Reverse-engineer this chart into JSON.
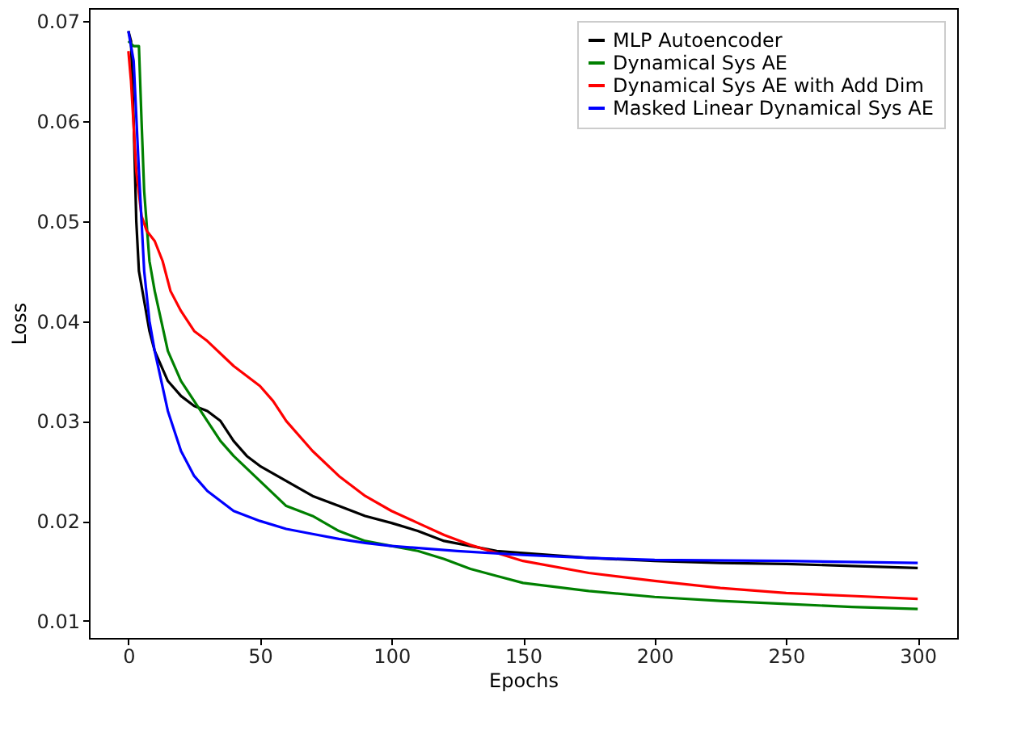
{
  "chart_data": {
    "type": "line",
    "xlabel": "Epochs",
    "ylabel": "Loss",
    "xlim": [
      -15,
      315
    ],
    "ylim": [
      0.0083,
      0.0713
    ],
    "xticks": [
      0,
      50,
      100,
      150,
      200,
      250,
      300
    ],
    "yticks": [
      0.01,
      0.02,
      0.03,
      0.04,
      0.05,
      0.06,
      0.07
    ],
    "grid": false,
    "legend": "top right",
    "marker": "none",
    "line_style": "solid",
    "series": [
      {
        "name": "MLP Autoencoder",
        "color": "#000000",
        "x": [
          0,
          1,
          2,
          3,
          4,
          6,
          8,
          10,
          15,
          20,
          25,
          30,
          35,
          40,
          45,
          50,
          60,
          70,
          80,
          90,
          100,
          110,
          120,
          130,
          140,
          150,
          175,
          200,
          225,
          250,
          275,
          300
        ],
        "values": [
          0.069,
          0.068,
          0.06,
          0.05,
          0.045,
          0.042,
          0.039,
          0.037,
          0.034,
          0.0325,
          0.0315,
          0.031,
          0.03,
          0.028,
          0.0265,
          0.0255,
          0.024,
          0.0225,
          0.0215,
          0.0205,
          0.0198,
          0.019,
          0.018,
          0.0175,
          0.017,
          0.0168,
          0.0163,
          0.016,
          0.0158,
          0.0157,
          0.0155,
          0.0153
        ]
      },
      {
        "name": "Dynamical Sys AE",
        "color": "#008000",
        "x": [
          0,
          2,
          4,
          5,
          6,
          8,
          10,
          15,
          20,
          25,
          30,
          35,
          40,
          50,
          60,
          70,
          80,
          90,
          100,
          110,
          120,
          130,
          140,
          150,
          175,
          200,
          225,
          250,
          275,
          300
        ],
        "values": [
          0.068,
          0.0675,
          0.0675,
          0.06,
          0.053,
          0.046,
          0.043,
          0.037,
          0.034,
          0.032,
          0.03,
          0.028,
          0.0265,
          0.024,
          0.0215,
          0.0205,
          0.019,
          0.018,
          0.0175,
          0.017,
          0.0162,
          0.0152,
          0.0145,
          0.0138,
          0.013,
          0.0124,
          0.012,
          0.0117,
          0.0114,
          0.0112
        ]
      },
      {
        "name": "Dynamical Sys AE with Add Dim",
        "color": "#ff0000",
        "x": [
          0,
          1,
          3,
          5,
          7,
          10,
          13,
          16,
          20,
          25,
          30,
          40,
          50,
          55,
          60,
          70,
          80,
          90,
          100,
          110,
          120,
          130,
          140,
          150,
          175,
          200,
          225,
          250,
          275,
          300
        ],
        "values": [
          0.067,
          0.064,
          0.055,
          0.0505,
          0.049,
          0.048,
          0.046,
          0.043,
          0.041,
          0.039,
          0.038,
          0.0355,
          0.0335,
          0.032,
          0.03,
          0.027,
          0.0245,
          0.0225,
          0.021,
          0.0198,
          0.0186,
          0.0176,
          0.0168,
          0.016,
          0.0148,
          0.014,
          0.0133,
          0.0128,
          0.0125,
          0.0122
        ]
      },
      {
        "name": "Masked Linear Dynamical Sys AE",
        "color": "#0000ff",
        "x": [
          0,
          2,
          4,
          6,
          8,
          10,
          15,
          20,
          25,
          30,
          40,
          50,
          60,
          70,
          80,
          90,
          100,
          125,
          150,
          175,
          200,
          250,
          300
        ],
        "values": [
          0.069,
          0.066,
          0.055,
          0.045,
          0.04,
          0.037,
          0.031,
          0.027,
          0.0245,
          0.023,
          0.021,
          0.02,
          0.0192,
          0.0187,
          0.0182,
          0.0178,
          0.0175,
          0.017,
          0.0166,
          0.0163,
          0.0161,
          0.016,
          0.0158
        ]
      }
    ]
  }
}
